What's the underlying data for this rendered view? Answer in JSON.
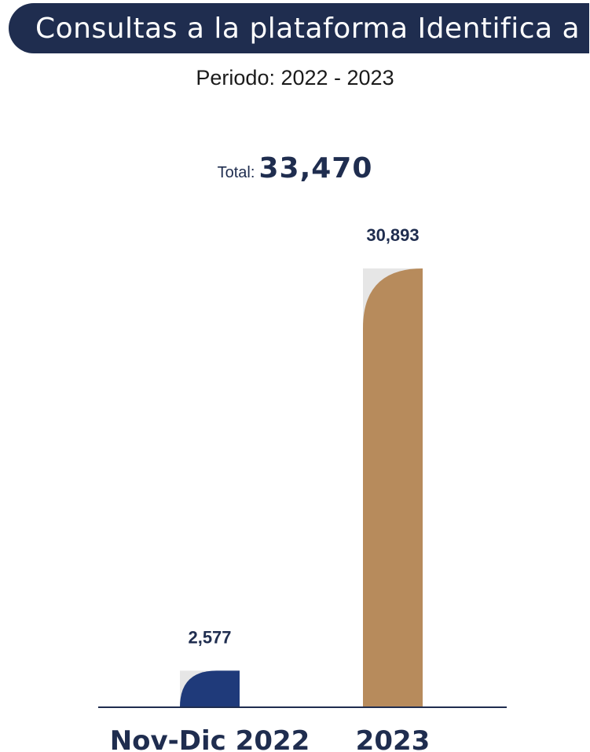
{
  "header": {
    "title": "Consultas a la plataforma Identifica a",
    "subtitle": "Periodo: 2022 - 2023"
  },
  "total": {
    "label": "Total:",
    "value": "33,470"
  },
  "colors": {
    "banner": "#1f2d4f",
    "text_dark": "#1f2d4f",
    "bar_navy": "#1f3a7a",
    "bar_tan": "#b78b5c",
    "bar_shadow": "#e6e6e6",
    "axis": "#1f2d4f"
  },
  "chart_data": {
    "type": "bar",
    "categories": [
      "Nov-Dic 2022",
      "2023"
    ],
    "values": [
      2577,
      30893
    ],
    "value_labels": [
      "2,577",
      "30,893"
    ],
    "bar_colors": [
      "#1f3a7a",
      "#b78b5c"
    ],
    "title": "Consultas a la plataforma Identifica a",
    "subtitle": "Periodo: 2022 - 2023",
    "xlabel": "",
    "ylabel": "",
    "ylim": [
      0,
      30893
    ],
    "grid": false,
    "legend": "none"
  }
}
